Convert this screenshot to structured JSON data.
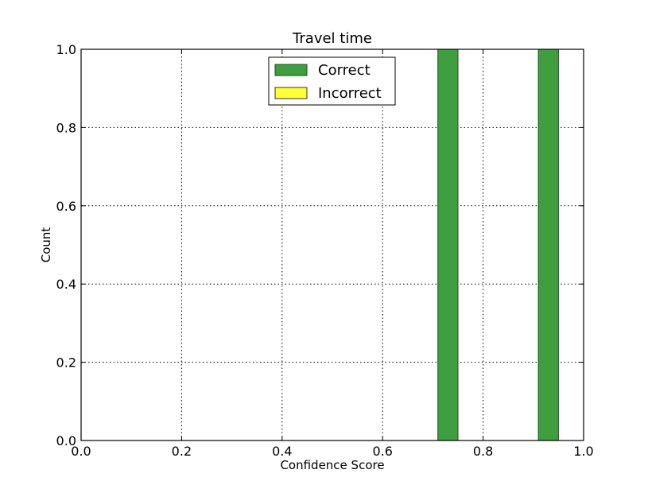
{
  "chart_data": {
    "type": "bar",
    "title": "Travel time",
    "xlabel": "Confidence Score",
    "ylabel": "Count",
    "xlim": [
      0.0,
      1.0
    ],
    "ylim": [
      0.0,
      1.0
    ],
    "xticks": [
      "0.0",
      "0.2",
      "0.4",
      "0.6",
      "0.8",
      "1.0"
    ],
    "yticks": [
      "0.0",
      "0.2",
      "0.4",
      "0.6",
      "0.8",
      "1.0"
    ],
    "grid": true,
    "legend_position": "top-center",
    "bin_width": 0.04,
    "series": [
      {
        "name": "Correct",
        "color": "#3f9f3f",
        "edge_color": "#1e4d1e",
        "bins": [
          {
            "x_start": 0.71,
            "value": 1
          },
          {
            "x_start": 0.91,
            "value": 1
          }
        ]
      },
      {
        "name": "Incorrect",
        "color": "#ffff33",
        "edge_color": "#333333",
        "bins": []
      }
    ]
  }
}
